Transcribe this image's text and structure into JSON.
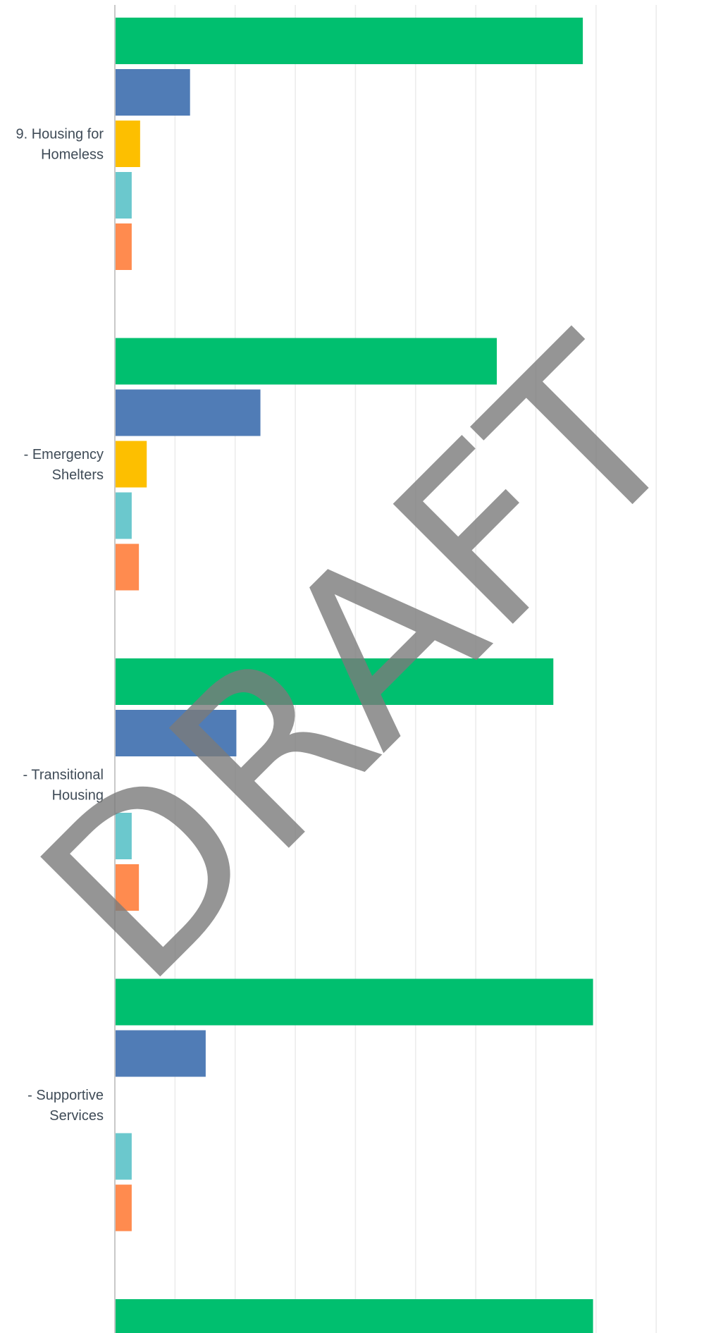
{
  "chart_data": {
    "type": "bar",
    "orientation": "horizontal",
    "grid": true,
    "xlim": [
      0,
      90
    ],
    "categories": [
      {
        "label_lines": [
          "9. Housing for",
          "Homeless"
        ],
        "values": [
          77.8,
          12.5,
          4.2,
          2.8,
          2.8
        ]
      },
      {
        "label_lines": [
          "- Emergency",
          "Shelters"
        ],
        "values": [
          63.5,
          24.2,
          5.3,
          2.8,
          4.0
        ]
      },
      {
        "label_lines": [
          "- Transitional",
          "Housing"
        ],
        "values": [
          72.9,
          20.2,
          null,
          2.8,
          4.0
        ]
      },
      {
        "label_lines": [
          "- Supportive",
          "Services"
        ],
        "values": [
          79.5,
          15.1,
          null,
          2.8,
          2.8
        ]
      },
      {
        "label_lines": [],
        "values": [
          79.5
        ]
      }
    ],
    "series": [
      {
        "color": "#00bf6f"
      },
      {
        "color": "#507cb6"
      },
      {
        "color": "#fdbf00"
      },
      {
        "color": "#6bc8cd"
      },
      {
        "color": "#ff8b4f"
      }
    ],
    "colors": {
      "gridline": "#ebebeb",
      "axis": "#c8c8c8",
      "label": "#3f4b57",
      "watermark": "#7a7a7a"
    },
    "watermark": {
      "text": "DRAFT",
      "rotation_deg": -45,
      "opacity": 0.8
    }
  }
}
